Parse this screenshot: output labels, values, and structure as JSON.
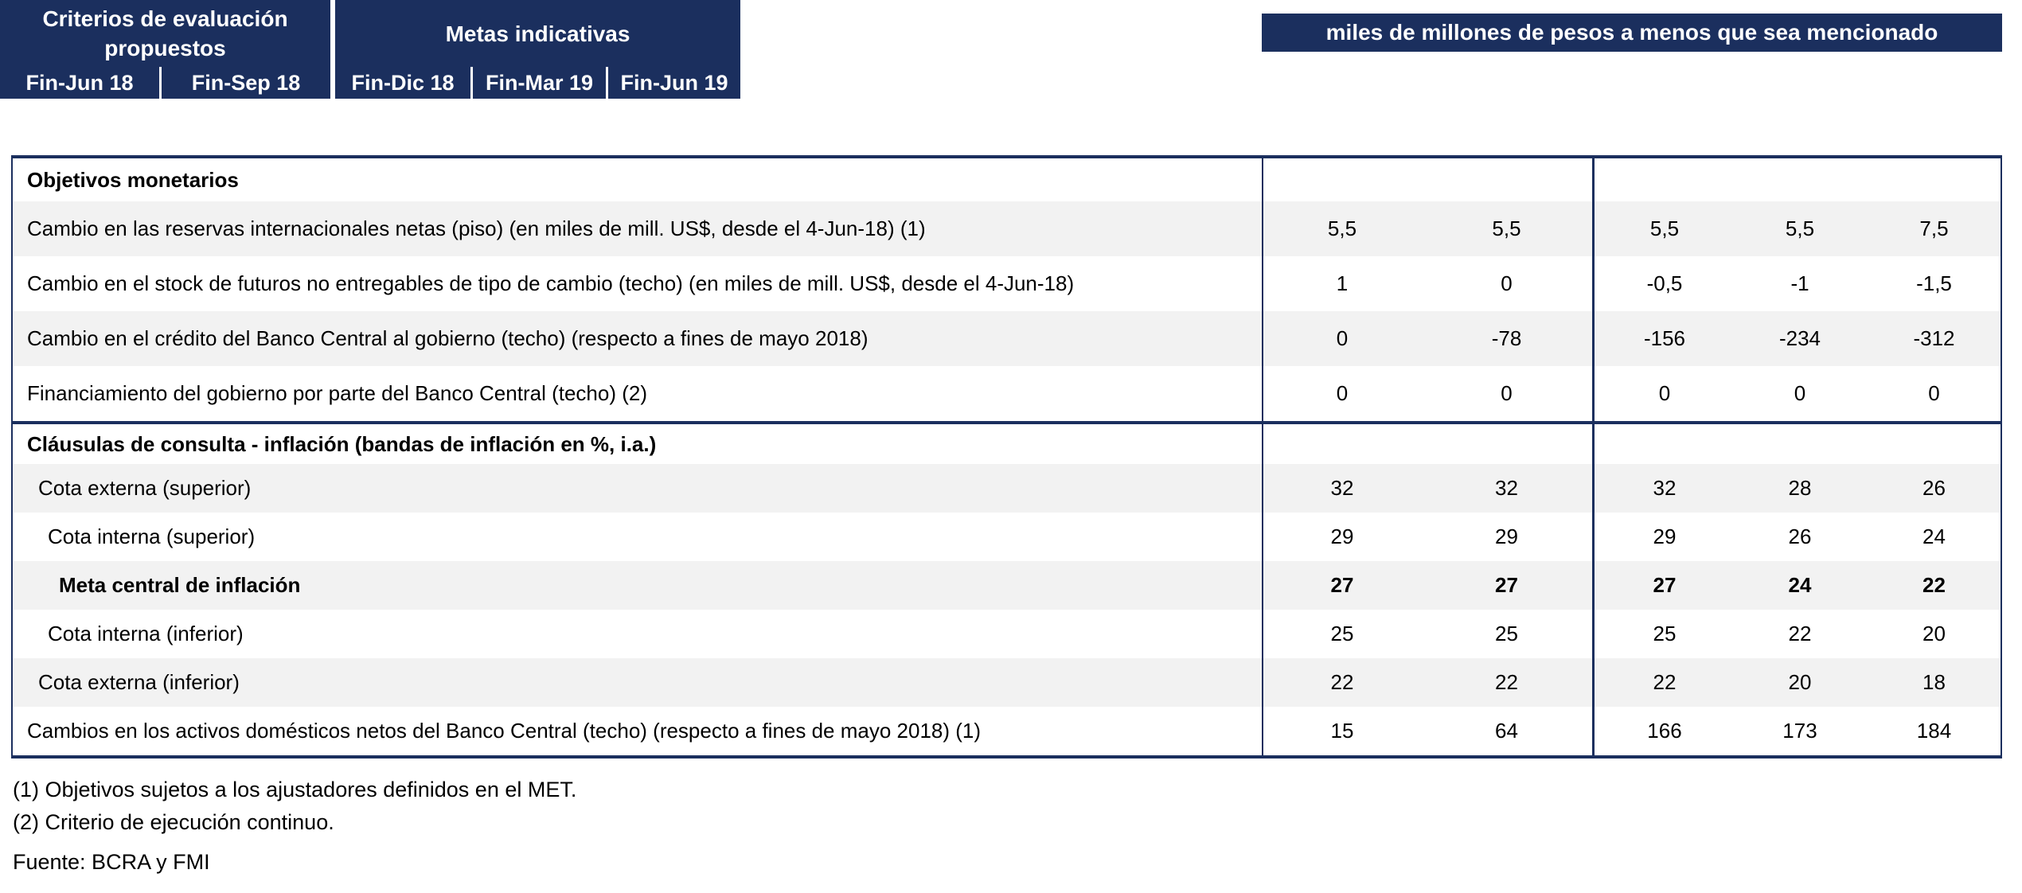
{
  "colors": {
    "header_navy": "#1b2f5e",
    "header_text": "#ffffff",
    "row_alt_gray": "#f2f2f2",
    "body_text": "#000000"
  },
  "table": {
    "unit_banner": "miles de millones de pesos a menos que sea mencionado",
    "groups": [
      {
        "label": "Criterios de evaluación propuestos"
      },
      {
        "label": "Metas indicativas"
      }
    ],
    "columns": [
      "Fin-Jun 18",
      "Fin-Sep 18",
      "Fin-Dic 18",
      "Fin-Mar 19",
      "Fin-Jun 19"
    ],
    "rows": [
      {
        "label": "Objetivos monetarios",
        "bold": true,
        "indent": 0,
        "shaded": false,
        "section_header": true,
        "values": [
          "",
          "",
          "",
          "",
          ""
        ]
      },
      {
        "label": "Cambio en las reservas internacionales netas (piso) (en miles de mill. US$, desde el 4-Jun-18) (1)",
        "indent": 0,
        "shaded": true,
        "values": [
          "5,5",
          "5,5",
          "5,5",
          "5,5",
          "7,5"
        ]
      },
      {
        "label": "Cambio en el stock de futuros no entregables de tipo de cambio (techo) (en miles de mill. US$, desde el 4-Jun-18)",
        "indent": 0,
        "shaded": false,
        "values": [
          "1",
          "0",
          "-0,5",
          "-1",
          "-1,5"
        ]
      },
      {
        "label": "Cambio en el crédito del Banco Central al gobierno (techo) (respecto a fines de mayo 2018)",
        "indent": 0,
        "shaded": true,
        "values": [
          "0",
          "-78",
          "-156",
          "-234",
          "-312"
        ]
      },
      {
        "label": "Financiamiento del gobierno por parte del Banco Central (techo) (2)",
        "indent": 0,
        "shaded": false,
        "values": [
          "0",
          "0",
          "0",
          "0",
          "0"
        ]
      },
      {
        "label": "Cláusulas de consulta - inflación (bandas de inflación en %, i.a.)",
        "bold": true,
        "indent": 0,
        "shaded": false,
        "section_header": true,
        "section_start": true,
        "values": [
          "",
          "",
          "",
          "",
          ""
        ]
      },
      {
        "label": "Cota externa (superior)",
        "indent": 1,
        "shaded": true,
        "values": [
          "32",
          "32",
          "32",
          "28",
          "26"
        ]
      },
      {
        "label": "Cota interna (superior)",
        "indent": 2,
        "shaded": false,
        "values": [
          "29",
          "29",
          "29",
          "26",
          "24"
        ]
      },
      {
        "label": "Meta central de inflación",
        "bold": true,
        "indent": 3,
        "shaded": true,
        "values": [
          "27",
          "27",
          "27",
          "24",
          "22"
        ]
      },
      {
        "label": "Cota interna (inferior)",
        "indent": 2,
        "shaded": false,
        "values": [
          "25",
          "25",
          "25",
          "22",
          "20"
        ]
      },
      {
        "label": "Cota externa (inferior)",
        "indent": 1,
        "shaded": true,
        "values": [
          "22",
          "22",
          "22",
          "20",
          "18"
        ]
      },
      {
        "label": "Cambios en los activos domésticos netos del Banco Central (techo) (respecto a fines de mayo 2018) (1)",
        "indent": 0,
        "shaded": false,
        "values": [
          "15",
          "64",
          "166",
          "173",
          "184"
        ]
      }
    ]
  },
  "footnotes": [
    "(1) Objetivos sujetos a los ajustadores definidos en el MET.",
    "(2) Criterio de ejecución continuo."
  ],
  "source": "Fuente: BCRA y FMI"
}
